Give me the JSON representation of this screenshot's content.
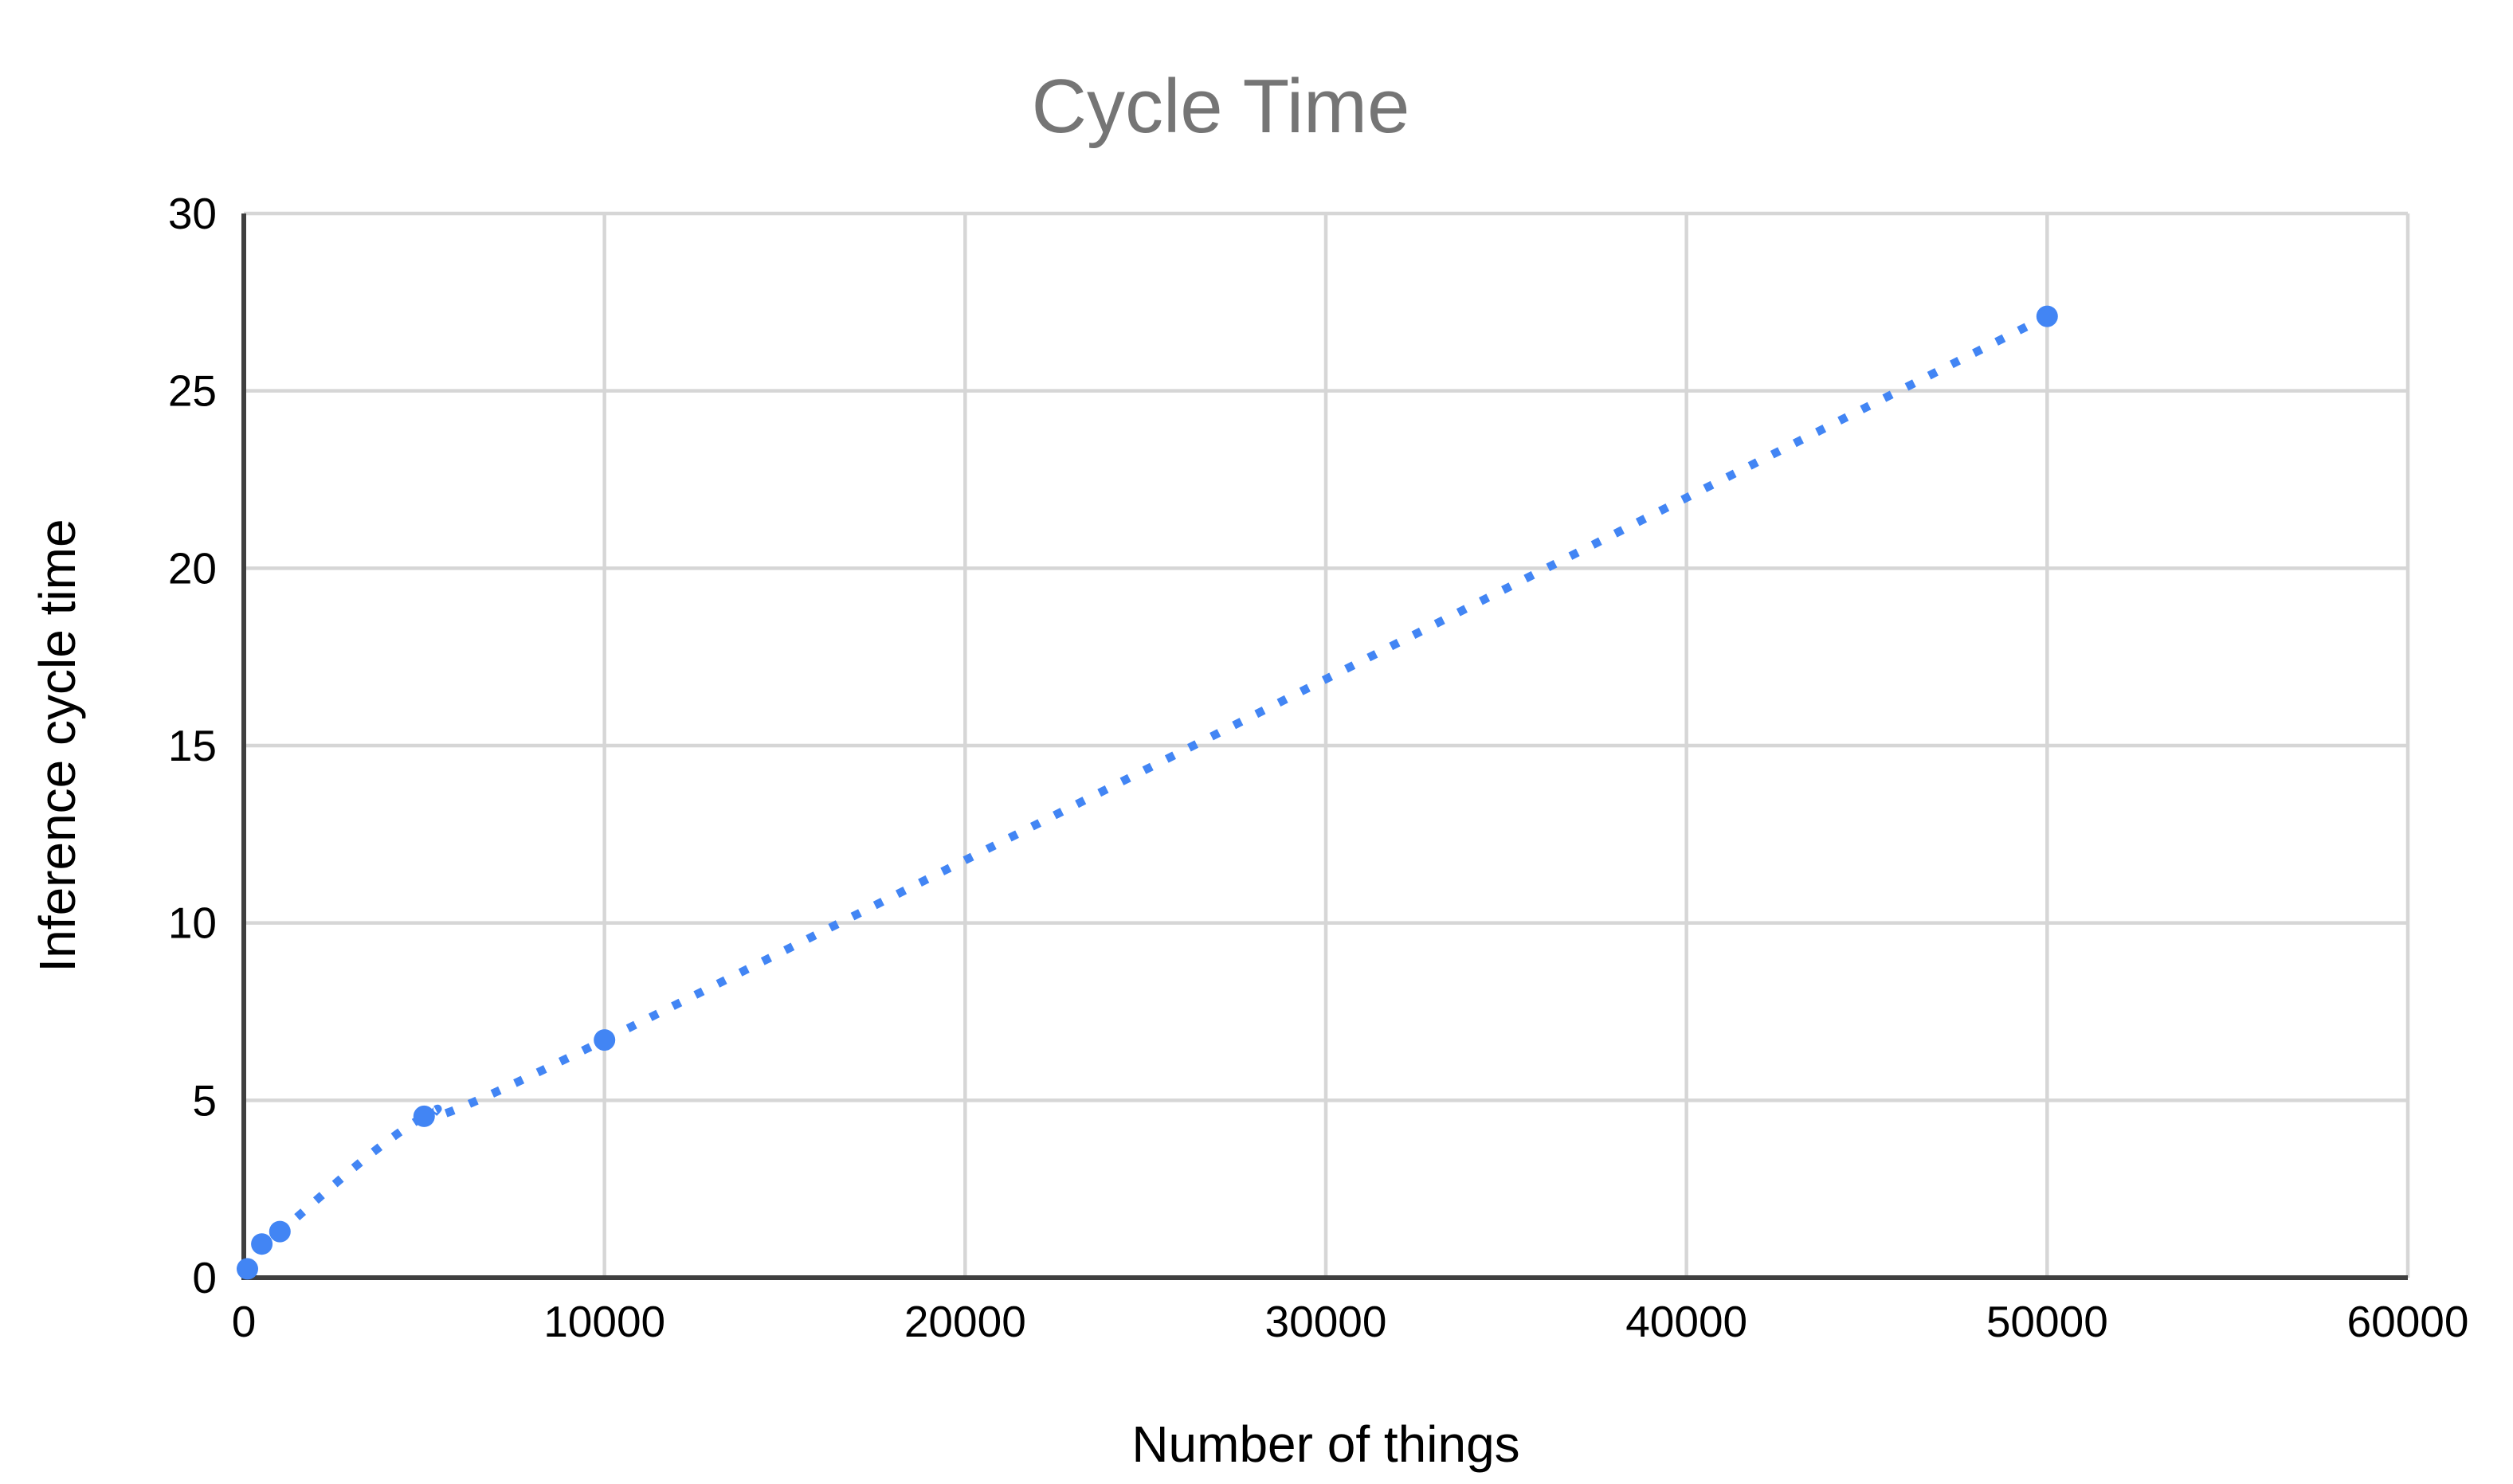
{
  "chart_data": {
    "type": "line",
    "title": "Cycle Time",
    "xlabel": "Number of things",
    "ylabel": "Inference cycle time",
    "x": [
      100,
      500,
      1000,
      5000,
      10000,
      50000
    ],
    "y": [
      0.25,
      0.95,
      1.3,
      4.55,
      6.7,
      27.1
    ],
    "xlim": [
      0,
      60000
    ],
    "ylim": [
      0,
      30
    ],
    "x_ticks": [
      0,
      10000,
      20000,
      30000,
      40000,
      50000,
      60000
    ],
    "y_ticks": [
      0,
      5,
      10,
      15,
      20,
      25,
      30
    ],
    "grid": true,
    "legend_position": "none",
    "line_style": "dotted",
    "smooth": true,
    "colors": {
      "series": "#4285f4",
      "title_text": "#757575",
      "axis_line": "#3f3f3f",
      "gridline": "#d6d6d6",
      "tick_text": "#000000"
    }
  }
}
